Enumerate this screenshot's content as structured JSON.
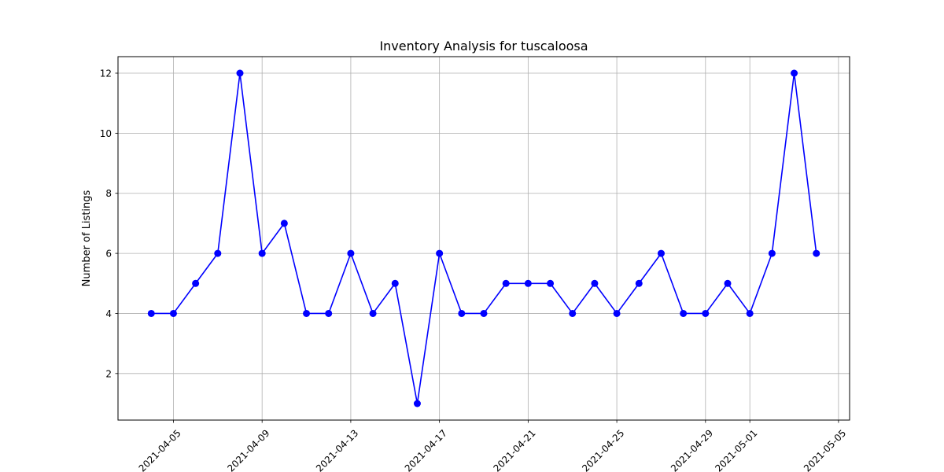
{
  "chart_data": {
    "type": "line",
    "title": "Inventory Analysis for tuscaloosa",
    "xlabel": "",
    "ylabel": "Number of Listings",
    "x": [
      "2021-04-04",
      "2021-04-05",
      "2021-04-06",
      "2021-04-07",
      "2021-04-08",
      "2021-04-09",
      "2021-04-10",
      "2021-04-11",
      "2021-04-12",
      "2021-04-13",
      "2021-04-14",
      "2021-04-15",
      "2021-04-16",
      "2021-04-17",
      "2021-04-18",
      "2021-04-19",
      "2021-04-20",
      "2021-04-21",
      "2021-04-22",
      "2021-04-23",
      "2021-04-24",
      "2021-04-25",
      "2021-04-26",
      "2021-04-27",
      "2021-04-28",
      "2021-04-29",
      "2021-04-30",
      "2021-05-01",
      "2021-05-02",
      "2021-05-03",
      "2021-05-04"
    ],
    "series": [
      {
        "values": [
          4,
          4,
          5,
          6,
          12,
          6,
          7,
          4,
          4,
          6,
          4,
          5,
          1,
          6,
          4,
          4,
          5,
          5,
          5,
          4,
          5,
          4,
          5,
          6,
          4,
          4,
          5,
          4,
          6,
          12,
          6
        ],
        "color": "#0000ff",
        "marker": "circle"
      }
    ],
    "xlim": [
      "2021-04-02T12:00:00",
      "2021-05-05T12:00:00"
    ],
    "ylim": [
      0.45,
      12.55
    ],
    "x_ticks": [
      "2021-04-05",
      "2021-04-09",
      "2021-04-13",
      "2021-04-17",
      "2021-04-21",
      "2021-04-25",
      "2021-04-29",
      "2021-05-01",
      "2021-05-05"
    ],
    "y_ticks": [
      2,
      4,
      6,
      8,
      10,
      12
    ],
    "grid": true,
    "grid_color": "#b0b0b0"
  }
}
